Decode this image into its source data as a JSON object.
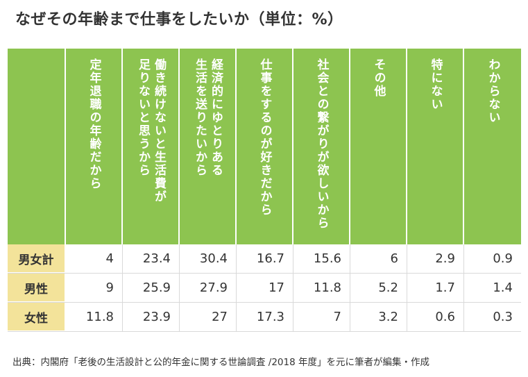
{
  "title": "なぜその年齢まで仕事をしたいか（単位：%）",
  "source": "出典：内閣府「老後の生活設計と公的年金に関する世論調査 /2018 年度」を元に筆者が編集・作成",
  "colors": {
    "header_bg": "#8dc450",
    "row_label_bg": "#f3e39a",
    "text": "#333333"
  },
  "chart_data": {
    "type": "table",
    "title": "なぜその年齢まで仕事をしたいか（単位：%）",
    "columns": [
      {
        "lines": [
          "定年退職の年齢だから"
        ]
      },
      {
        "lines": [
          "働き続けないと生活費が",
          "足りないと思うから"
        ]
      },
      {
        "lines": [
          "経済的にゆとりある",
          "生活を送りたいから"
        ]
      },
      {
        "lines": [
          "仕事をするのが好きだから"
        ]
      },
      {
        "lines": [
          "社会との繋がりが欲しいから"
        ]
      },
      {
        "lines": [
          "その他"
        ]
      },
      {
        "lines": [
          "特にない"
        ]
      },
      {
        "lines": [
          "わからない"
        ]
      }
    ],
    "rows": [
      {
        "label": "男女計",
        "values": [
          "4",
          "23.4",
          "30.4",
          "16.7",
          "15.6",
          "6",
          "2.9",
          "0.9"
        ]
      },
      {
        "label": "男性",
        "values": [
          "9",
          "25.9",
          "27.9",
          "17",
          "11.8",
          "5.2",
          "1.7",
          "1.4"
        ]
      },
      {
        "label": "女性",
        "values": [
          "11.8",
          "23.9",
          "27",
          "17.3",
          "7",
          "3.2",
          "0.6",
          "0.3"
        ]
      }
    ]
  }
}
